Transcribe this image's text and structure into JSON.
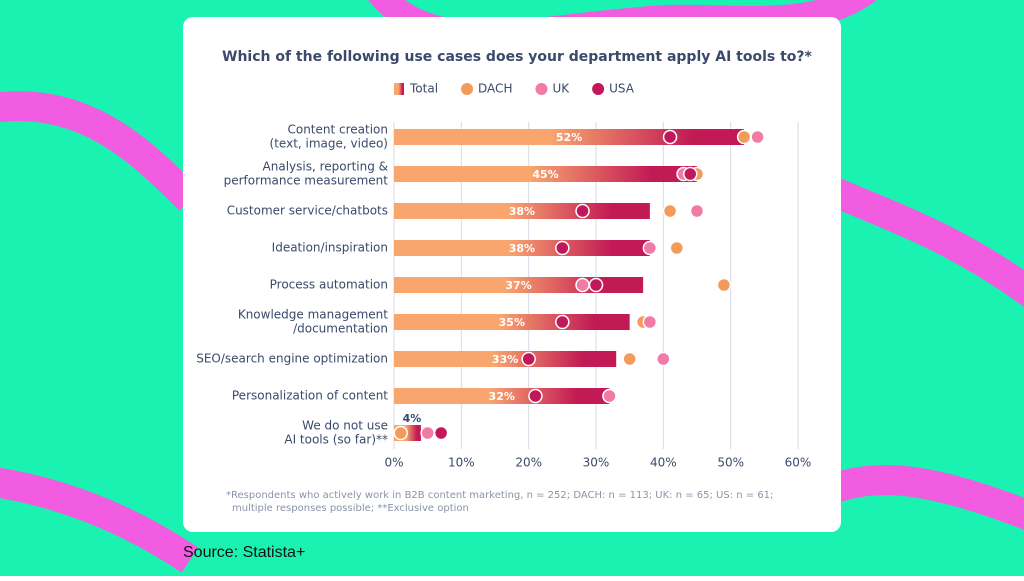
{
  "source": "Source: Statista+",
  "chart_data": {
    "type": "bar",
    "orientation": "horizontal",
    "title": "Which of the following use cases does your department apply AI tools to?*",
    "categories": [
      [
        "Content creation",
        "(text, image, video)"
      ],
      [
        "Analysis, reporting &",
        "performance measurement"
      ],
      [
        "Customer service/chatbots"
      ],
      [
        "Ideation/inspiration"
      ],
      [
        "Process automation"
      ],
      [
        "Knowledge management",
        "/documentation"
      ],
      [
        "SEO/search engine optimization"
      ],
      [
        "Personalization of content"
      ],
      [
        "We do not use",
        "AI tools (so far)**"
      ]
    ],
    "series": [
      {
        "name": "Total",
        "marker": "bar",
        "color": [
          "#f8a56e",
          "#c21a55"
        ],
        "values": [
          52,
          45,
          38,
          38,
          37,
          35,
          33,
          32,
          4
        ],
        "value_labels": [
          "52%",
          "45%",
          "38%",
          "38%",
          "37%",
          "35%",
          "33%",
          "32%",
          "4%"
        ]
      },
      {
        "name": "DACH",
        "marker": "dot",
        "color": "#f39b5b",
        "values": [
          52,
          45,
          41,
          42,
          49,
          37,
          35,
          32,
          1
        ]
      },
      {
        "name": "UK",
        "marker": "dot",
        "color": "#f27aa6",
        "values": [
          54,
          43,
          45,
          38,
          28,
          38,
          40,
          32,
          5
        ]
      },
      {
        "name": "USA",
        "marker": "dot",
        "color": "#c2185b",
        "values": [
          41,
          44,
          28,
          25,
          30,
          25,
          20,
          21,
          7
        ]
      }
    ],
    "xlim": [
      0,
      60
    ],
    "xticks": [
      {
        "value": 0,
        "label": "0%"
      },
      {
        "value": 10,
        "label": "10%"
      },
      {
        "value": 20,
        "label": "20%"
      },
      {
        "value": 30,
        "label": "30%"
      },
      {
        "value": 40,
        "label": "40%"
      },
      {
        "value": 50,
        "label": "50%"
      },
      {
        "value": 60,
        "label": "60%"
      }
    ],
    "grid": true,
    "footnote": [
      "*Respondents who actively work in B2B content marketing, n = 252; DACH: n = 113; UK: n = 65; US: n = 61;",
      "multiple responses possible; **Exclusive option"
    ]
  }
}
